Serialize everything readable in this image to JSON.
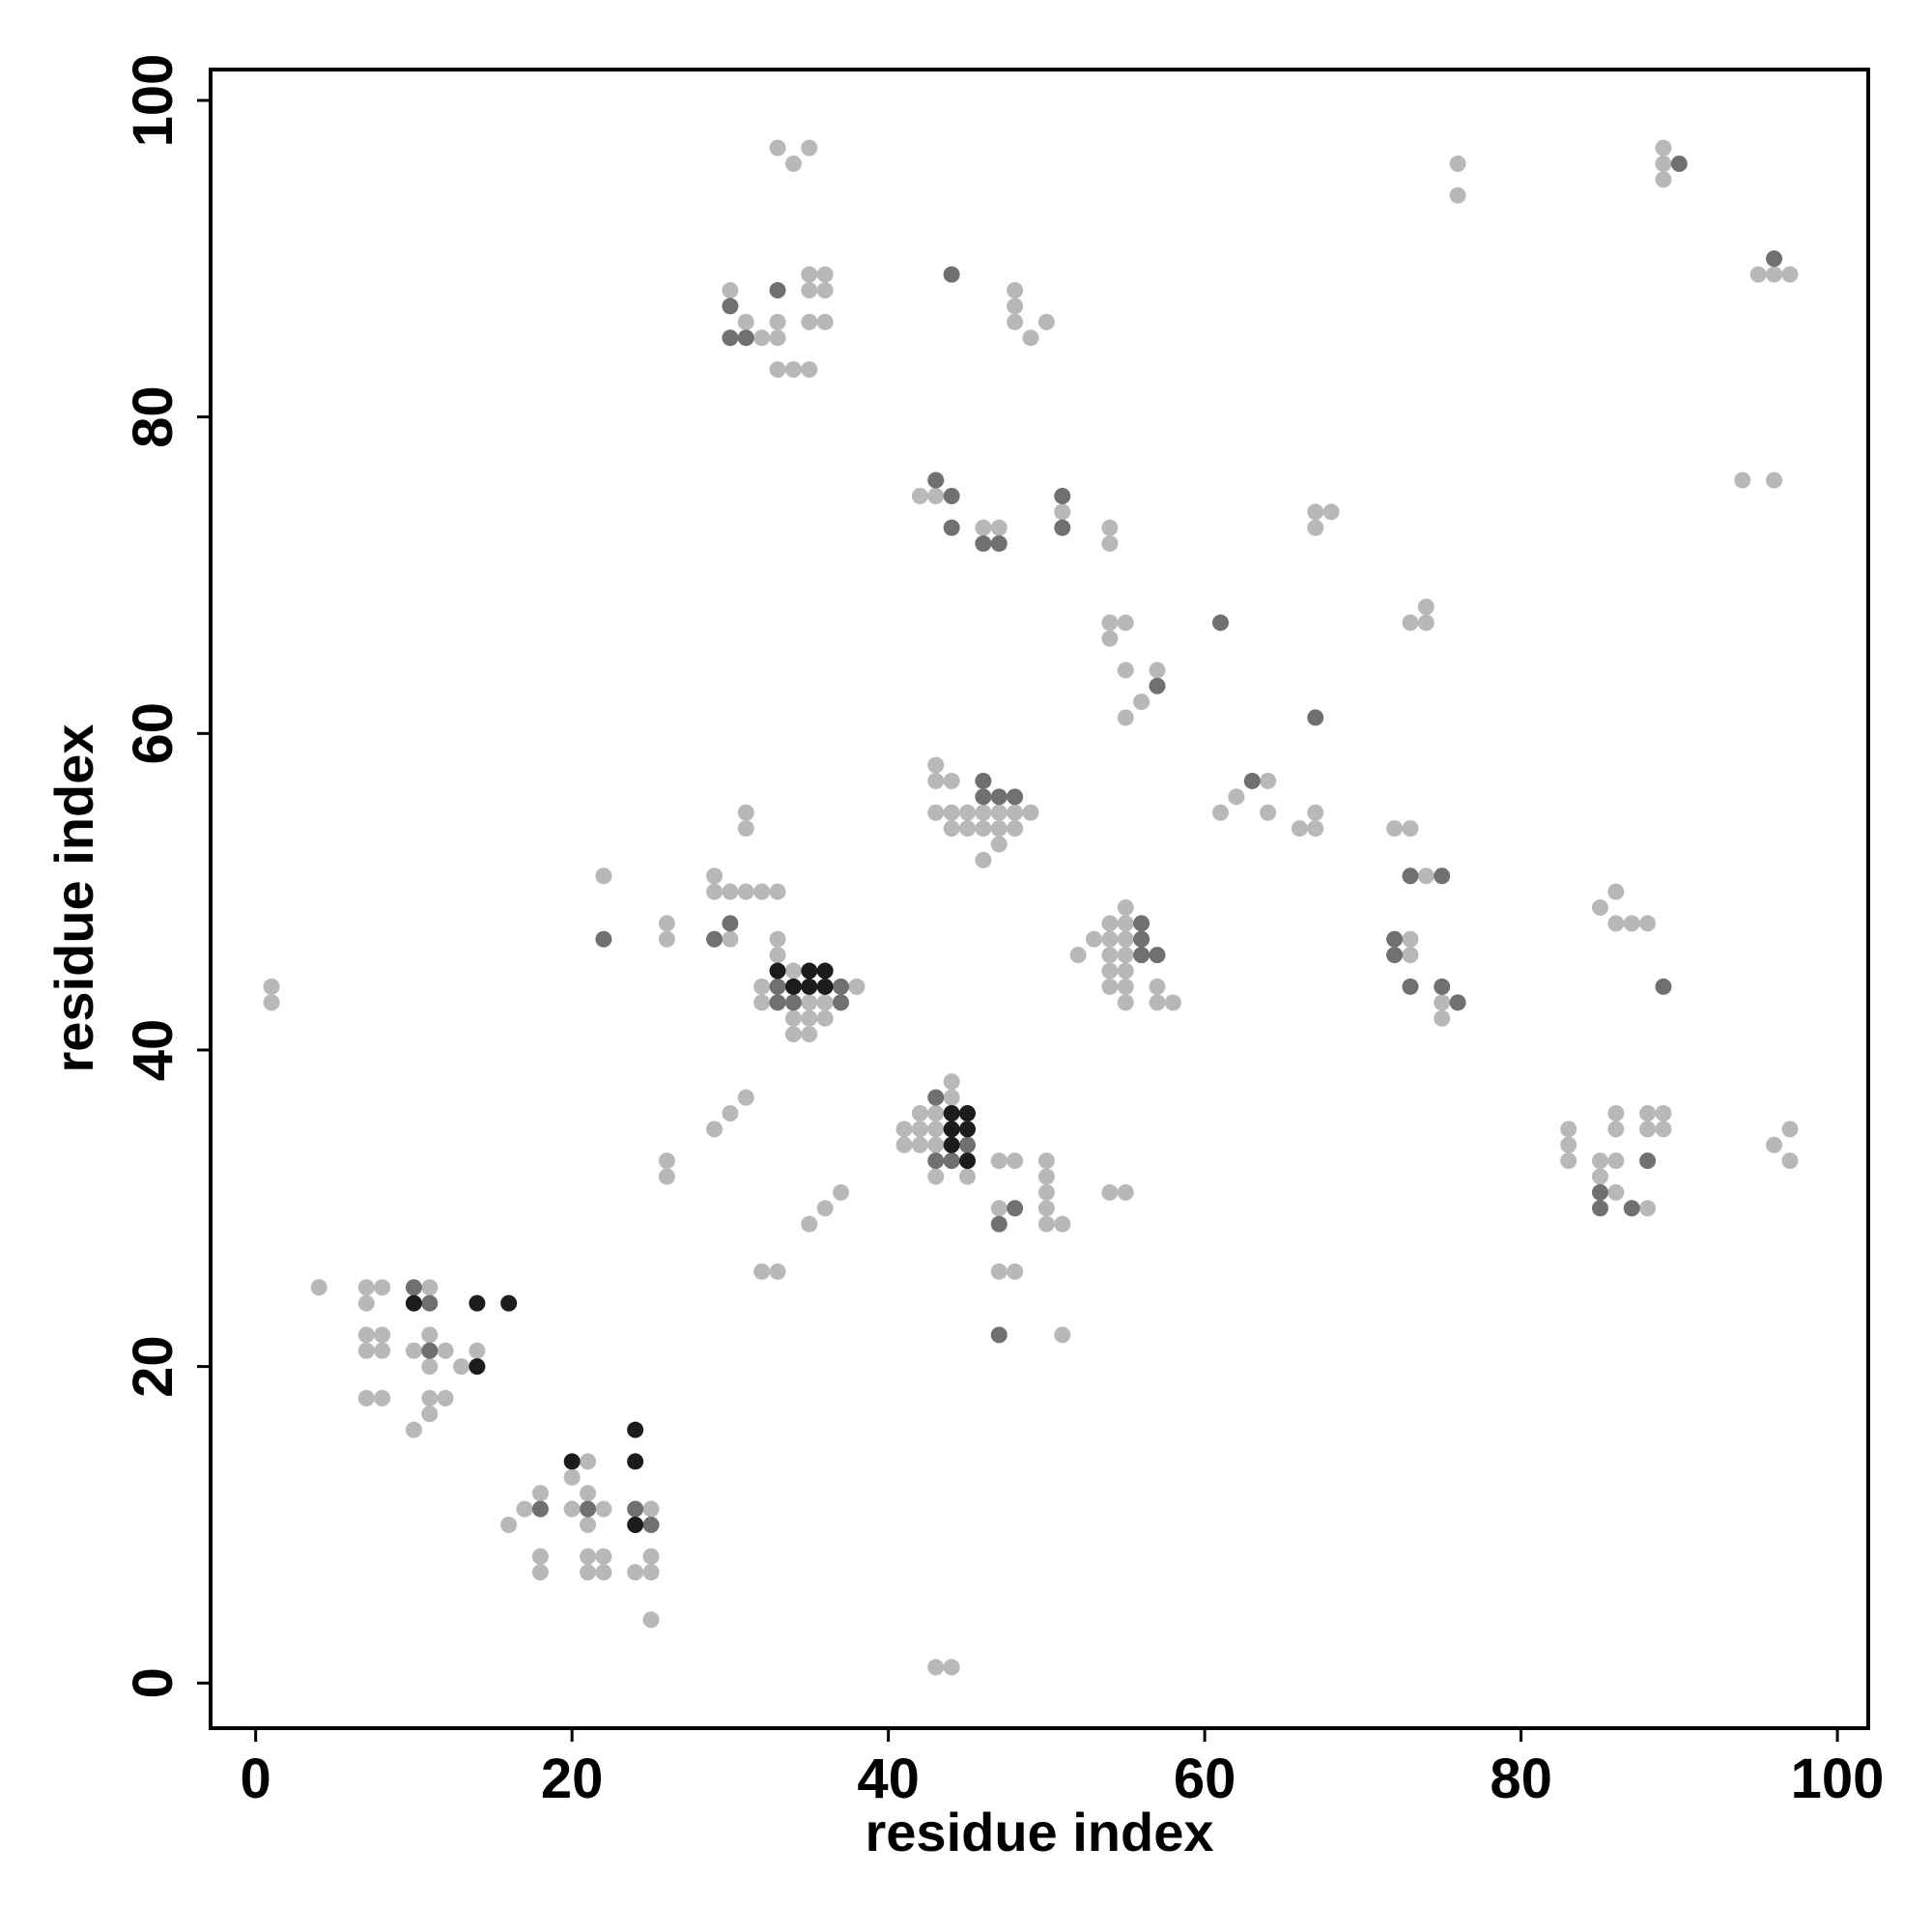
{
  "chart_data": {
    "type": "scatter",
    "x_label": "residue index",
    "y_label": "residue index",
    "xlim": [
      -2.85,
      101.95
    ],
    "ylim": [
      -2.85,
      101.95
    ],
    "xticks": [
      0,
      20,
      40,
      60,
      80,
      100
    ],
    "yticks": [
      0,
      20,
      40,
      60,
      80,
      100
    ],
    "series": [
      {
        "color": "#b8b8b8",
        "x": [
          33,
          35,
          34,
          76,
          76,
          89,
          89,
          89,
          30,
          35,
          36,
          35,
          36,
          31,
          33,
          35,
          36,
          32,
          33,
          33,
          34,
          35,
          48,
          48,
          48,
          50,
          49,
          95,
          96,
          97,
          94,
          96,
          42,
          43,
          46,
          47,
          51,
          54,
          54,
          67,
          68,
          67,
          74,
          73,
          74,
          54,
          55,
          54,
          55,
          57,
          56,
          55,
          43,
          43,
          44,
          43,
          44,
          45,
          46,
          47,
          48,
          49,
          44,
          45,
          46,
          47,
          48,
          47,
          46,
          61,
          62,
          64,
          64,
          66,
          67,
          67,
          31,
          31,
          72,
          73,
          74,
          22,
          29,
          29,
          30,
          31,
          32,
          33,
          30,
          26,
          26,
          86,
          85,
          86,
          87,
          88,
          55,
          54,
          55,
          53,
          54,
          55,
          52,
          54,
          55,
          54,
          55,
          54,
          55,
          57,
          55,
          57,
          58,
          73,
          73,
          75,
          75,
          1,
          1,
          33,
          33,
          34,
          32,
          38,
          32,
          35,
          36,
          34,
          35,
          36,
          34,
          35,
          44,
          44,
          42,
          43,
          41,
          42,
          43,
          41,
          42,
          43,
          47,
          48,
          43,
          45,
          50,
          50,
          50,
          50,
          47,
          50,
          51,
          54,
          55,
          29,
          30,
          31,
          26,
          26,
          37,
          36,
          35,
          33,
          32,
          47,
          48,
          51,
          83,
          83,
          83,
          86,
          86,
          88,
          89,
          88,
          89,
          85,
          86,
          85,
          86,
          88,
          96,
          97,
          97,
          43,
          44,
          4,
          7,
          8,
          11,
          7,
          7,
          8,
          11,
          7,
          8,
          10,
          12,
          14,
          11,
          13,
          7,
          8,
          11,
          12,
          11,
          10,
          21,
          20,
          18,
          21,
          17,
          20,
          22,
          25,
          16,
          21,
          18,
          21,
          22,
          25,
          18,
          21,
          22,
          24,
          25,
          25
        ],
        "values": [
          97,
          97,
          96,
          96,
          94,
          97,
          96,
          95,
          88,
          89,
          89,
          88,
          88,
          86,
          86,
          86,
          86,
          85,
          85,
          83,
          83,
          83,
          88,
          87,
          86,
          86,
          85,
          89,
          89,
          89,
          76,
          76,
          75,
          75,
          73,
          73,
          74,
          73,
          72,
          74,
          74,
          73,
          68,
          67,
          67,
          67,
          67,
          66,
          64,
          64,
          62,
          61,
          58,
          57,
          57,
          55,
          55,
          55,
          55,
          55,
          55,
          55,
          54,
          54,
          54,
          54,
          54,
          53,
          52,
          55,
          56,
          57,
          55,
          54,
          54,
          55,
          55,
          54,
          54,
          54,
          51,
          51,
          51,
          50,
          50,
          50,
          50,
          50,
          47,
          48,
          47,
          50,
          49,
          48,
          48,
          48,
          49,
          48,
          48,
          47,
          47,
          47,
          46,
          46,
          46,
          45,
          45,
          44,
          44,
          44,
          43,
          43,
          43,
          47,
          46,
          43,
          42,
          44,
          43,
          47,
          46,
          45,
          44,
          44,
          43,
          43,
          43,
          42,
          42,
          42,
          41,
          41,
          38,
          37,
          36,
          36,
          35,
          35,
          35,
          34,
          34,
          34,
          33,
          33,
          32,
          32,
          33,
          32,
          31,
          30,
          30,
          29,
          29,
          31,
          31,
          35,
          36,
          37,
          33,
          32,
          31,
          30,
          29,
          26,
          26,
          26,
          26,
          22,
          35,
          34,
          33,
          36,
          35,
          36,
          36,
          35,
          35,
          33,
          33,
          32,
          31,
          30,
          34,
          35,
          33,
          1,
          1,
          25,
          25,
          25,
          25,
          24,
          22,
          22,
          22,
          21,
          21,
          21,
          21,
          21,
          20,
          20,
          18,
          18,
          18,
          18,
          17,
          16,
          14,
          13,
          12,
          12,
          11,
          11,
          11,
          11,
          10,
          10,
          8,
          8,
          8,
          8,
          7,
          7,
          7,
          7,
          7,
          4
        ]
      },
      {
        "color": "#707070",
        "x": [
          90,
          33,
          44,
          30,
          30,
          31,
          96,
          43,
          44,
          44,
          46,
          47,
          51,
          51,
          57,
          61,
          67,
          46,
          46,
          47,
          48,
          63,
          73,
          75,
          22,
          30,
          29,
          56,
          56,
          56,
          57,
          72,
          72,
          73,
          75,
          76,
          89,
          33,
          37,
          33,
          34,
          37,
          43,
          45,
          43,
          44,
          48,
          47,
          88,
          85,
          85,
          87,
          47,
          10,
          11,
          11,
          18,
          21,
          24,
          25
        ],
        "values": [
          96,
          88,
          89,
          87,
          85,
          85,
          90,
          76,
          75,
          73,
          72,
          72,
          75,
          73,
          63,
          67,
          61,
          57,
          56,
          56,
          56,
          57,
          51,
          51,
          47,
          48,
          47,
          48,
          47,
          46,
          46,
          47,
          46,
          44,
          44,
          43,
          44,
          44,
          44,
          43,
          43,
          43,
          37,
          34,
          33,
          33,
          30,
          29,
          33,
          31,
          30,
          30,
          22,
          25,
          24,
          21,
          11,
          11,
          11,
          10
        ]
      },
      {
        "color": "#1c1c1c",
        "x": [
          33,
          35,
          36,
          34,
          35,
          36,
          44,
          45,
          44,
          45,
          44,
          45,
          10,
          14,
          16,
          14,
          24,
          20,
          24,
          24
        ],
        "values": [
          45,
          45,
          45,
          44,
          44,
          44,
          36,
          36,
          35,
          35,
          34,
          33,
          24,
          24,
          24,
          20,
          16,
          14,
          14,
          10
        ]
      }
    ]
  }
}
